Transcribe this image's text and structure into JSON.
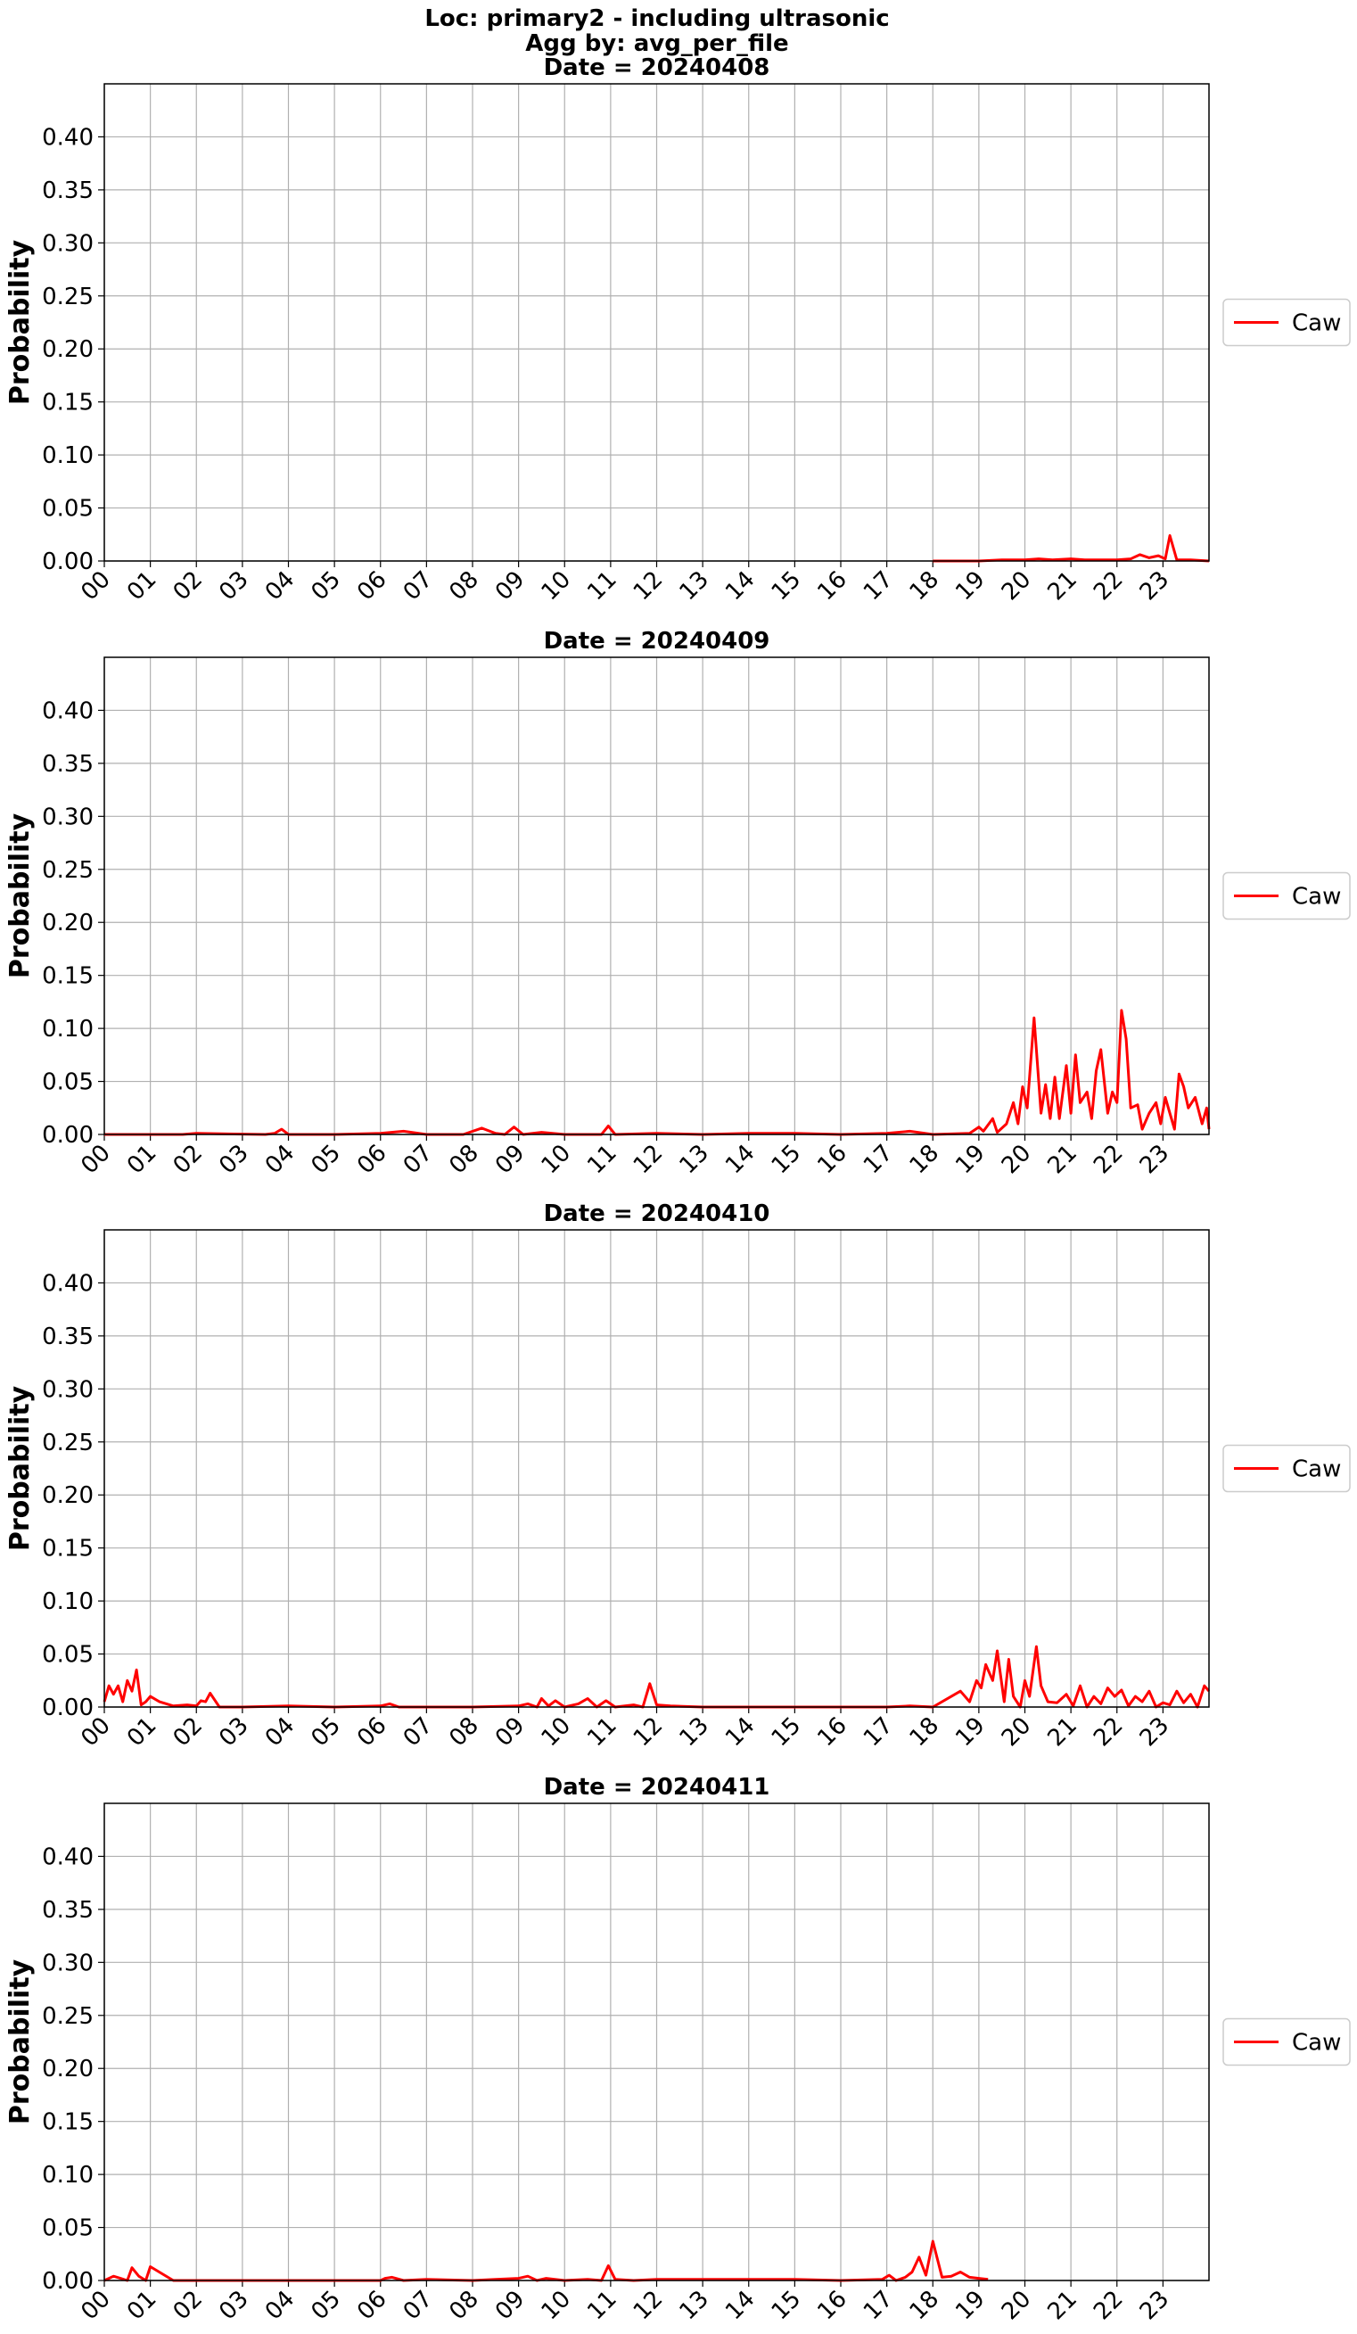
{
  "figure": {
    "title_lines": [
      "Loc: primary2 - including ultrasonic",
      "Agg by: avg_per_file"
    ]
  },
  "chart_data": [
    {
      "type": "line",
      "title": "Date = 20240408",
      "ylabel": "Probability",
      "xlabel": "",
      "xlim": [
        0,
        24
      ],
      "ylim": [
        0,
        0.45
      ],
      "yticks": [
        "0.00",
        "0.05",
        "0.10",
        "0.15",
        "0.20",
        "0.25",
        "0.30",
        "0.35",
        "0.40"
      ],
      "xticks": [
        "00",
        "01",
        "02",
        "03",
        "04",
        "05",
        "06",
        "07",
        "08",
        "09",
        "10",
        "11",
        "12",
        "13",
        "14",
        "15",
        "16",
        "17",
        "18",
        "19",
        "20",
        "21",
        "22",
        "23"
      ],
      "grid": true,
      "legend_position": "center-right",
      "series": [
        {
          "name": "Caw",
          "color": "#ff0000",
          "x": [
            18.0,
            18.5,
            19.0,
            19.5,
            20.0,
            20.3,
            20.6,
            21.0,
            21.3,
            21.6,
            22.0,
            22.3,
            22.5,
            22.7,
            22.9,
            23.05,
            23.15,
            23.3,
            23.6,
            24.0
          ],
          "y": [
            0.0,
            0.0,
            0.0,
            0.001,
            0.001,
            0.002,
            0.001,
            0.002,
            0.001,
            0.001,
            0.001,
            0.002,
            0.006,
            0.003,
            0.005,
            0.002,
            0.024,
            0.001,
            0.001,
            0.0
          ]
        }
      ]
    },
    {
      "type": "line",
      "title": "Date = 20240409",
      "ylabel": "Probability",
      "xlabel": "",
      "xlim": [
        0,
        24
      ],
      "ylim": [
        0,
        0.45
      ],
      "yticks": [
        "0.00",
        "0.05",
        "0.10",
        "0.15",
        "0.20",
        "0.25",
        "0.30",
        "0.35",
        "0.40"
      ],
      "xticks": [
        "00",
        "01",
        "02",
        "03",
        "04",
        "05",
        "06",
        "07",
        "08",
        "09",
        "10",
        "11",
        "12",
        "13",
        "14",
        "15",
        "16",
        "17",
        "18",
        "19",
        "20",
        "21",
        "22",
        "23"
      ],
      "grid": true,
      "legend_position": "center-right",
      "series": [
        {
          "name": "Caw",
          "color": "#ff0000",
          "x": [
            0.0,
            1.0,
            1.7,
            2.0,
            3.5,
            3.7,
            3.85,
            4.0,
            5.0,
            6.0,
            6.5,
            7.0,
            7.8,
            8.2,
            8.5,
            8.7,
            8.9,
            9.1,
            9.5,
            10.0,
            10.8,
            10.95,
            11.1,
            12.0,
            13.0,
            14.0,
            15.0,
            16.0,
            17.0,
            17.5,
            18.0,
            18.8,
            19.0,
            19.1,
            19.3,
            19.4,
            19.6,
            19.75,
            19.85,
            19.95,
            20.05,
            20.2,
            20.35,
            20.45,
            20.55,
            20.65,
            20.75,
            20.9,
            21.0,
            21.1,
            21.2,
            21.35,
            21.45,
            21.55,
            21.65,
            21.8,
            21.9,
            22.0,
            22.1,
            22.2,
            22.3,
            22.45,
            22.55,
            22.7,
            22.85,
            22.95,
            23.05,
            23.15,
            23.25,
            23.35,
            23.45,
            23.55,
            23.7,
            23.85,
            23.95,
            24.0
          ],
          "y": [
            0.0,
            0.0,
            0.0,
            0.001,
            0.0,
            0.001,
            0.005,
            0.0,
            0.0,
            0.001,
            0.003,
            0.0,
            0.0,
            0.006,
            0.001,
            0.0,
            0.007,
            0.0,
            0.002,
            0.0,
            0.0,
            0.008,
            0.0,
            0.001,
            0.0,
            0.001,
            0.001,
            0.0,
            0.001,
            0.003,
            0.0,
            0.001,
            0.007,
            0.003,
            0.015,
            0.002,
            0.01,
            0.03,
            0.01,
            0.045,
            0.025,
            0.11,
            0.02,
            0.047,
            0.015,
            0.054,
            0.015,
            0.065,
            0.02,
            0.075,
            0.03,
            0.04,
            0.015,
            0.06,
            0.08,
            0.02,
            0.04,
            0.03,
            0.117,
            0.09,
            0.025,
            0.028,
            0.005,
            0.02,
            0.03,
            0.01,
            0.035,
            0.02,
            0.005,
            0.057,
            0.045,
            0.025,
            0.035,
            0.01,
            0.025,
            0.005
          ]
        }
      ]
    },
    {
      "type": "line",
      "title": "Date = 20240410",
      "ylabel": "Probability",
      "xlabel": "",
      "xlim": [
        0,
        24
      ],
      "ylim": [
        0,
        0.45
      ],
      "yticks": [
        "0.00",
        "0.05",
        "0.10",
        "0.15",
        "0.20",
        "0.25",
        "0.30",
        "0.35",
        "0.40"
      ],
      "xticks": [
        "00",
        "01",
        "02",
        "03",
        "04",
        "05",
        "06",
        "07",
        "08",
        "09",
        "10",
        "11",
        "12",
        "13",
        "14",
        "15",
        "16",
        "17",
        "18",
        "19",
        "20",
        "21",
        "22",
        "23"
      ],
      "grid": true,
      "legend_position": "center-right",
      "series": [
        {
          "name": "Caw",
          "color": "#ff0000",
          "x": [
            0.0,
            0.1,
            0.2,
            0.3,
            0.4,
            0.5,
            0.6,
            0.7,
            0.8,
            0.9,
            1.0,
            1.2,
            1.5,
            1.8,
            2.0,
            2.1,
            2.2,
            2.3,
            2.5,
            3.0,
            4.0,
            5.0,
            6.0,
            6.2,
            6.4,
            6.6,
            7.0,
            8.0,
            9.0,
            9.2,
            9.4,
            9.5,
            9.65,
            9.8,
            10.0,
            10.3,
            10.5,
            10.7,
            10.9,
            11.1,
            11.5,
            11.7,
            11.85,
            12.0,
            12.3,
            13.0,
            14.0,
            15.0,
            16.0,
            17.0,
            17.5,
            18.0,
            18.6,
            18.8,
            18.95,
            19.05,
            19.15,
            19.3,
            19.4,
            19.55,
            19.65,
            19.75,
            19.9,
            20.0,
            20.1,
            20.25,
            20.35,
            20.5,
            20.7,
            20.9,
            21.05,
            21.2,
            21.35,
            21.5,
            21.65,
            21.8,
            21.95,
            22.1,
            22.25,
            22.4,
            22.55,
            22.7,
            22.85,
            23.0,
            23.15,
            23.3,
            23.45,
            23.6,
            23.75,
            23.9,
            24.0
          ],
          "y": [
            0.005,
            0.02,
            0.012,
            0.02,
            0.005,
            0.025,
            0.015,
            0.035,
            0.002,
            0.005,
            0.01,
            0.005,
            0.001,
            0.002,
            0.001,
            0.006,
            0.005,
            0.013,
            0.0,
            0.0,
            0.001,
            0.0,
            0.001,
            0.003,
            0.0,
            0.0,
            0.0,
            0.0,
            0.001,
            0.003,
            0.0,
            0.008,
            0.001,
            0.006,
            0.0,
            0.003,
            0.008,
            0.0,
            0.006,
            0.0,
            0.002,
            0.0,
            0.022,
            0.002,
            0.001,
            0.0,
            0.0,
            0.0,
            0.0,
            0.0,
            0.001,
            0.0,
            0.015,
            0.005,
            0.025,
            0.018,
            0.04,
            0.025,
            0.053,
            0.005,
            0.045,
            0.01,
            0.0,
            0.025,
            0.01,
            0.057,
            0.02,
            0.005,
            0.004,
            0.012,
            0.001,
            0.02,
            0.0,
            0.01,
            0.003,
            0.018,
            0.01,
            0.016,
            0.001,
            0.01,
            0.005,
            0.015,
            0.0,
            0.004,
            0.002,
            0.015,
            0.004,
            0.012,
            0.0,
            0.02,
            0.015
          ]
        }
      ]
    },
    {
      "type": "line",
      "title": "Date = 20240411",
      "ylabel": "Probability",
      "xlabel": "",
      "xlim": [
        0,
        24
      ],
      "ylim": [
        0,
        0.45
      ],
      "yticks": [
        "0.00",
        "0.05",
        "0.10",
        "0.15",
        "0.20",
        "0.25",
        "0.30",
        "0.35",
        "0.40"
      ],
      "xticks": [
        "00",
        "01",
        "02",
        "03",
        "04",
        "05",
        "06",
        "07",
        "08",
        "09",
        "10",
        "11",
        "12",
        "13",
        "14",
        "15",
        "16",
        "17",
        "18",
        "19",
        "20",
        "21",
        "22",
        "23"
      ],
      "grid": true,
      "legend_position": "center-right",
      "series": [
        {
          "name": "Caw",
          "color": "#ff0000",
          "x": [
            0.0,
            0.1,
            0.2,
            0.35,
            0.5,
            0.6,
            0.75,
            0.9,
            1.0,
            1.5,
            2.0,
            3.0,
            4.0,
            5.0,
            6.0,
            6.1,
            6.25,
            6.5,
            7.0,
            8.0,
            8.5,
            9.0,
            9.2,
            9.4,
            9.6,
            10.0,
            10.5,
            10.8,
            10.95,
            11.1,
            11.5,
            12.0,
            13.0,
            14.0,
            15.0,
            16.0,
            16.9,
            17.05,
            17.2,
            17.4,
            17.55,
            17.7,
            17.85,
            18.0,
            18.2,
            18.4,
            18.6,
            18.8,
            19.0,
            19.2
          ],
          "y": [
            0.0,
            0.002,
            0.004,
            0.002,
            0.0,
            0.012,
            0.004,
            0.0,
            0.013,
            0.0,
            0.0,
            0.0,
            0.0,
            0.0,
            0.0,
            0.002,
            0.003,
            0.0,
            0.001,
            0.0,
            0.001,
            0.002,
            0.004,
            0.0,
            0.002,
            0.0,
            0.001,
            0.0,
            0.014,
            0.001,
            0.0,
            0.001,
            0.001,
            0.001,
            0.001,
            0.0,
            0.001,
            0.005,
            0.0,
            0.003,
            0.008,
            0.022,
            0.005,
            0.037,
            0.003,
            0.004,
            0.008,
            0.003,
            0.002,
            0.001
          ]
        }
      ]
    }
  ]
}
